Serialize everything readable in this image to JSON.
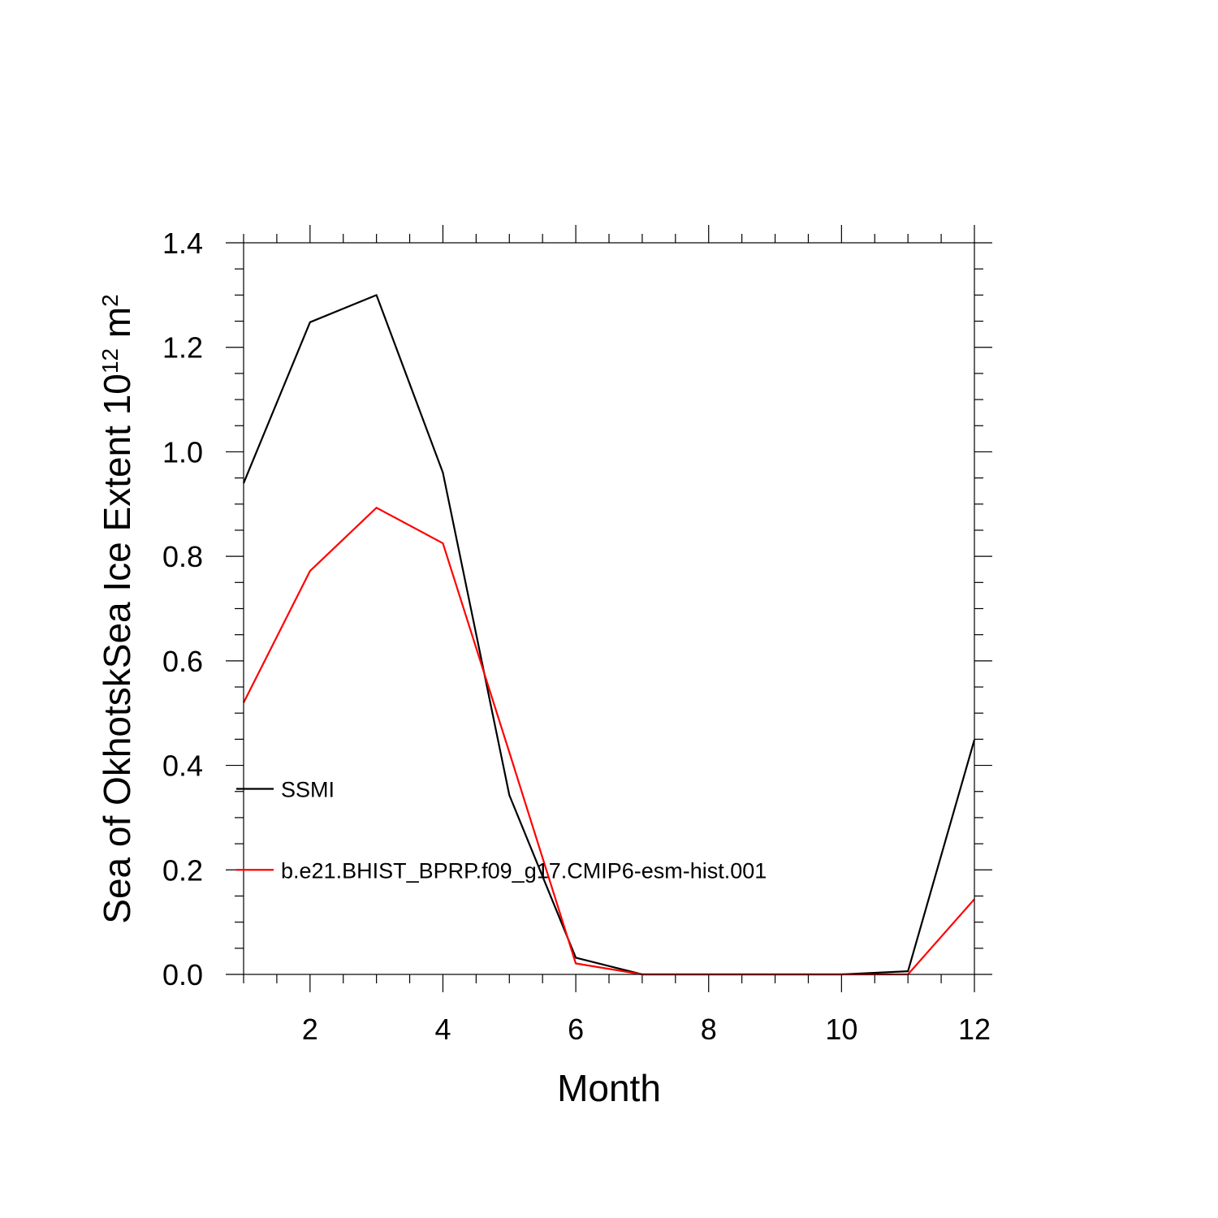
{
  "chart_data": {
    "type": "line",
    "title": "",
    "xlabel": "Month",
    "ylabel": "Sea of OkhotskSea Ice Extent 10",
    "ylabel_superscript": "12",
    "ylabel_unit": " m",
    "ylabel_unit_superscript": "2",
    "xlim": [
      1,
      12
    ],
    "ylim": [
      0.0,
      1.4
    ],
    "x": [
      1,
      2,
      3,
      4,
      5,
      6,
      7,
      8,
      9,
      10,
      11,
      12
    ],
    "x_ticks": [
      2,
      4,
      6,
      8,
      10,
      12
    ],
    "x_tick_labels": [
      "2",
      "4",
      "6",
      "8",
      "10",
      "12"
    ],
    "y_ticks": [
      0.0,
      0.2,
      0.4,
      0.6,
      0.8,
      1.0,
      1.2,
      1.4
    ],
    "y_tick_labels": [
      "0.0",
      "0.2",
      "0.4",
      "0.6",
      "0.8",
      "1.0",
      "1.2",
      "1.4"
    ],
    "grid": false,
    "legend_placement": "inside left",
    "series": [
      {
        "name": "SSMI",
        "color": "#000000",
        "values": [
          0.94,
          1.248,
          1.3,
          0.96,
          0.343,
          0.032,
          0.0,
          0.0,
          0.0,
          0.0,
          0.006,
          0.449
        ]
      },
      {
        "name": "b.e21.BHIST_BPRP.f09_g17.CMIP6-esm-hist.001",
        "color": "#ff0000",
        "values": [
          0.52,
          0.772,
          0.893,
          0.825,
          0.425,
          0.021,
          0.0,
          0.0,
          0.0,
          0.0,
          0.0,
          0.144
        ]
      }
    ]
  }
}
